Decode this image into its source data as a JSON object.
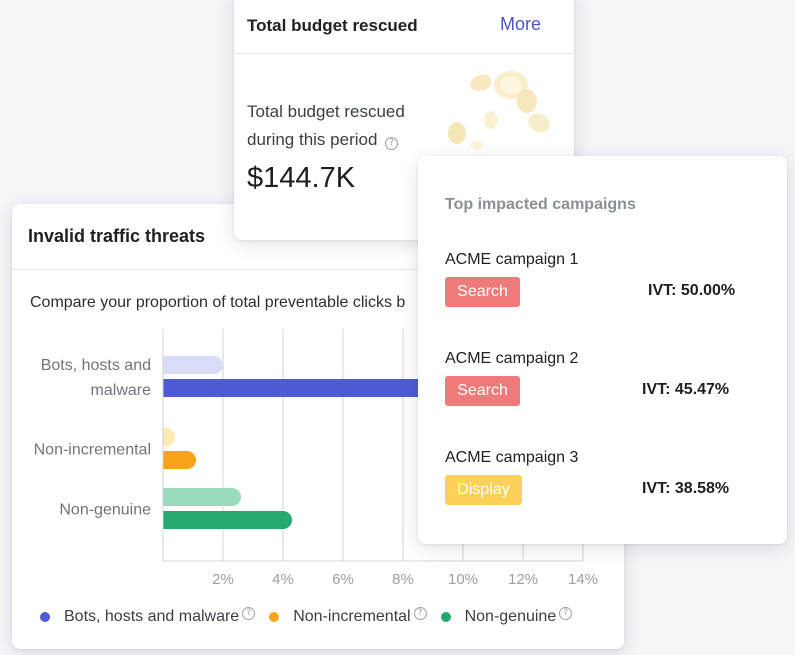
{
  "threats": {
    "title": "Invalid traffic threats",
    "description": "Compare your proportion of total preventable clicks b",
    "legend": [
      {
        "label": "Bots, hosts and malware",
        "color": "#4f5bd5"
      },
      {
        "label": "Non-incremental",
        "color": "#f9a31a"
      },
      {
        "label": "Non-genuine",
        "color": "#25a96f"
      }
    ]
  },
  "chart_data": {
    "type": "bar",
    "orientation": "horizontal",
    "categories": [
      "Bots, hosts and malware",
      "Non-incremental",
      "Non-genuine"
    ],
    "category_lines": [
      [
        "Bots, hosts and",
        "malware"
      ],
      [
        "Non-incremental"
      ],
      [
        "Non-genuine"
      ]
    ],
    "series": [
      {
        "role": "benchmark",
        "colors": [
          "#d9dcf6",
          "#fde7b3",
          "#99dbbb"
        ],
        "values": [
          2.0,
          0.4,
          2.6
        ]
      },
      {
        "role": "you",
        "colors": [
          "#4f5bd5",
          "#f9a31a",
          "#25a96f"
        ],
        "values": [
          10.5,
          1.1,
          4.3
        ]
      }
    ],
    "x_ticks": [
      "2%",
      "4%",
      "6%",
      "8%",
      "10%",
      "12%",
      "14%"
    ],
    "xlim": [
      0,
      14
    ],
    "grid": true
  },
  "budget": {
    "title": "Total budget rescued",
    "more_label": "More",
    "label": "Total budget rescued during this period",
    "amount": "$144.7K"
  },
  "campaigns": {
    "title": "Top impacted campaigns",
    "items": [
      {
        "name": "ACME campaign 1",
        "tag": "Search",
        "ivt": "IVT: 50.00%"
      },
      {
        "name": "ACME campaign 2",
        "tag": "Search",
        "ivt": "IVT: 45.47%"
      },
      {
        "name": "ACME campaign 3",
        "tag": "Display",
        "ivt": "IVT: 38.58%"
      }
    ]
  },
  "icons": {
    "help": "help-circle-icon",
    "coins": "coins-illustration"
  },
  "help_glyph": "?"
}
